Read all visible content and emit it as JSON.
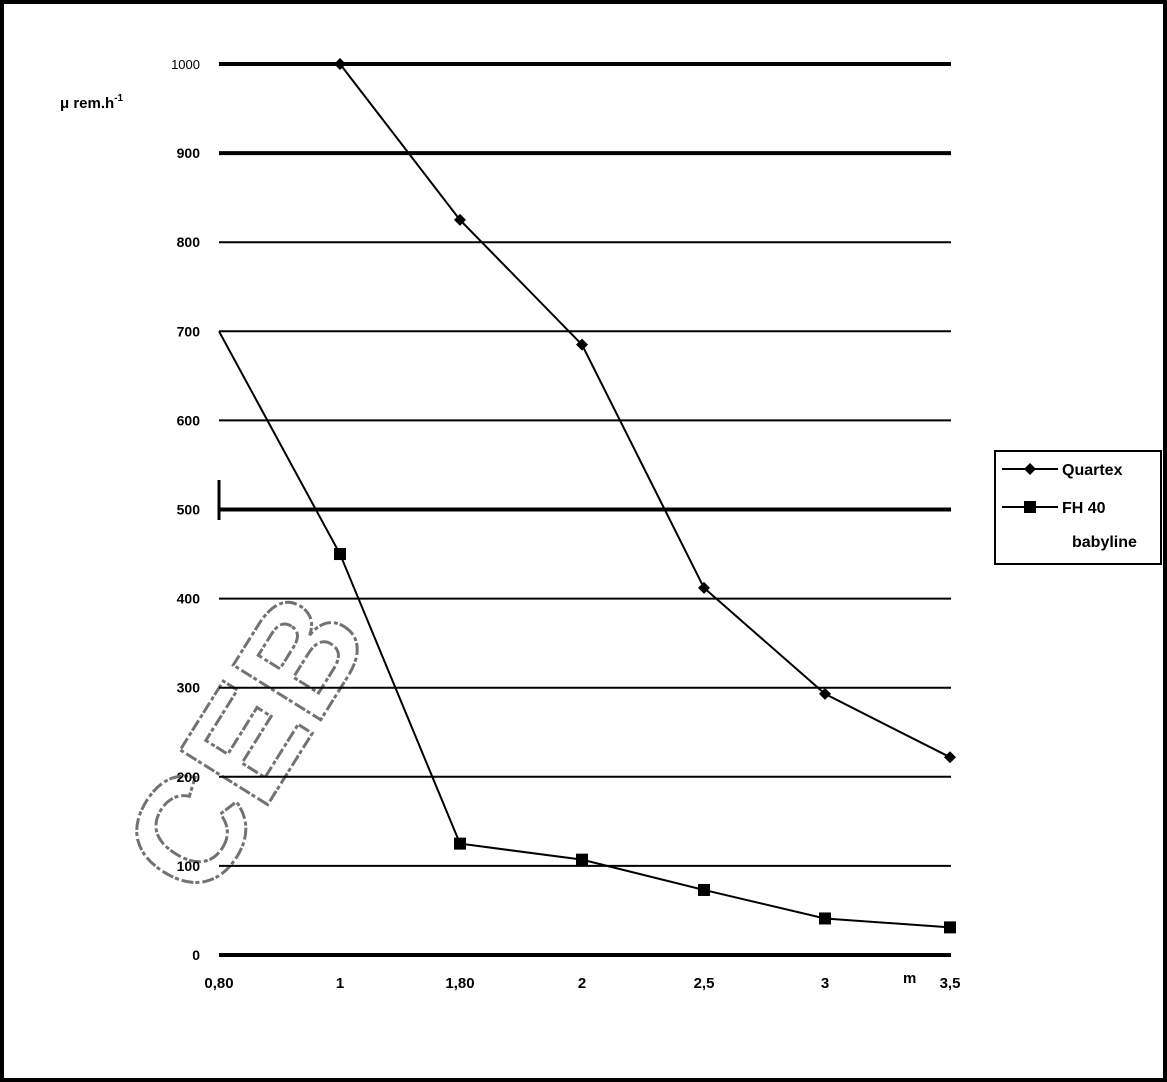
{
  "chart_data": {
    "type": "line",
    "title": "",
    "xlabel": "m",
    "ylabel": "μ rem.h",
    "ylabel_superscript": "-1",
    "x_categories": [
      "0,80",
      "1",
      "1,80",
      "2",
      "2,5",
      "3",
      "3,5"
    ],
    "ylim": [
      0,
      1000
    ],
    "yticks": [
      "0",
      "100",
      "200",
      "300",
      "400",
      "500",
      "600",
      "700",
      "800",
      "900",
      "1000"
    ],
    "grid": true,
    "legend_placement": "right",
    "series": [
      {
        "name": "Quartex",
        "marker": "diamond",
        "points": [
          {
            "x": "1",
            "y": 1000
          },
          {
            "x": "1,80",
            "y": 825
          },
          {
            "x": "2",
            "y": 685
          },
          {
            "x": "2,5",
            "y": 412
          },
          {
            "x": "3",
            "y": 293
          },
          {
            "x": "3,5",
            "y": 222
          }
        ]
      },
      {
        "name": "FH 40 babyline",
        "name_lines": [
          "FH 40",
          "babyline"
        ],
        "marker": "square",
        "points": [
          {
            "x": "0,80",
            "y": 700
          },
          {
            "x": "1",
            "y": 450
          },
          {
            "x": "1,80",
            "y": 125
          },
          {
            "x": "2",
            "y": 107
          },
          {
            "x": "2,5",
            "y": 73
          },
          {
            "x": "3",
            "y": 41
          },
          {
            "x": "3,5",
            "y": 31
          }
        ]
      }
    ],
    "watermark": "CEB",
    "colors": {
      "line": "#000000",
      "background": "#ffffff"
    }
  }
}
